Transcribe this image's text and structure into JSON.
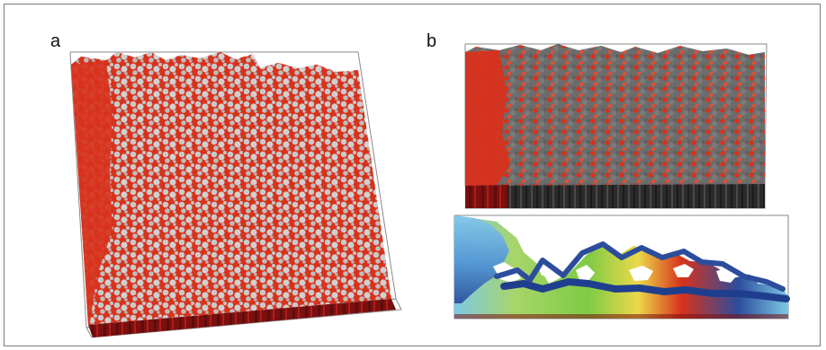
{
  "panels": {
    "a": {
      "label": "a"
    },
    "b": {
      "label": "b"
    }
  },
  "colors": {
    "red_surface": "#d8321c",
    "dark_red": "#7a1010",
    "light_gray_grains": "#c9c9c9",
    "dark_gray_grains": "#6c6c6c",
    "frame_line": "#8a8a8a",
    "map_blue": "#2c4d9c",
    "map_cyan": "#7ec9e5",
    "map_green": "#7ecb45",
    "map_yellow": "#ecd94a",
    "map_red": "#d8321c"
  }
}
